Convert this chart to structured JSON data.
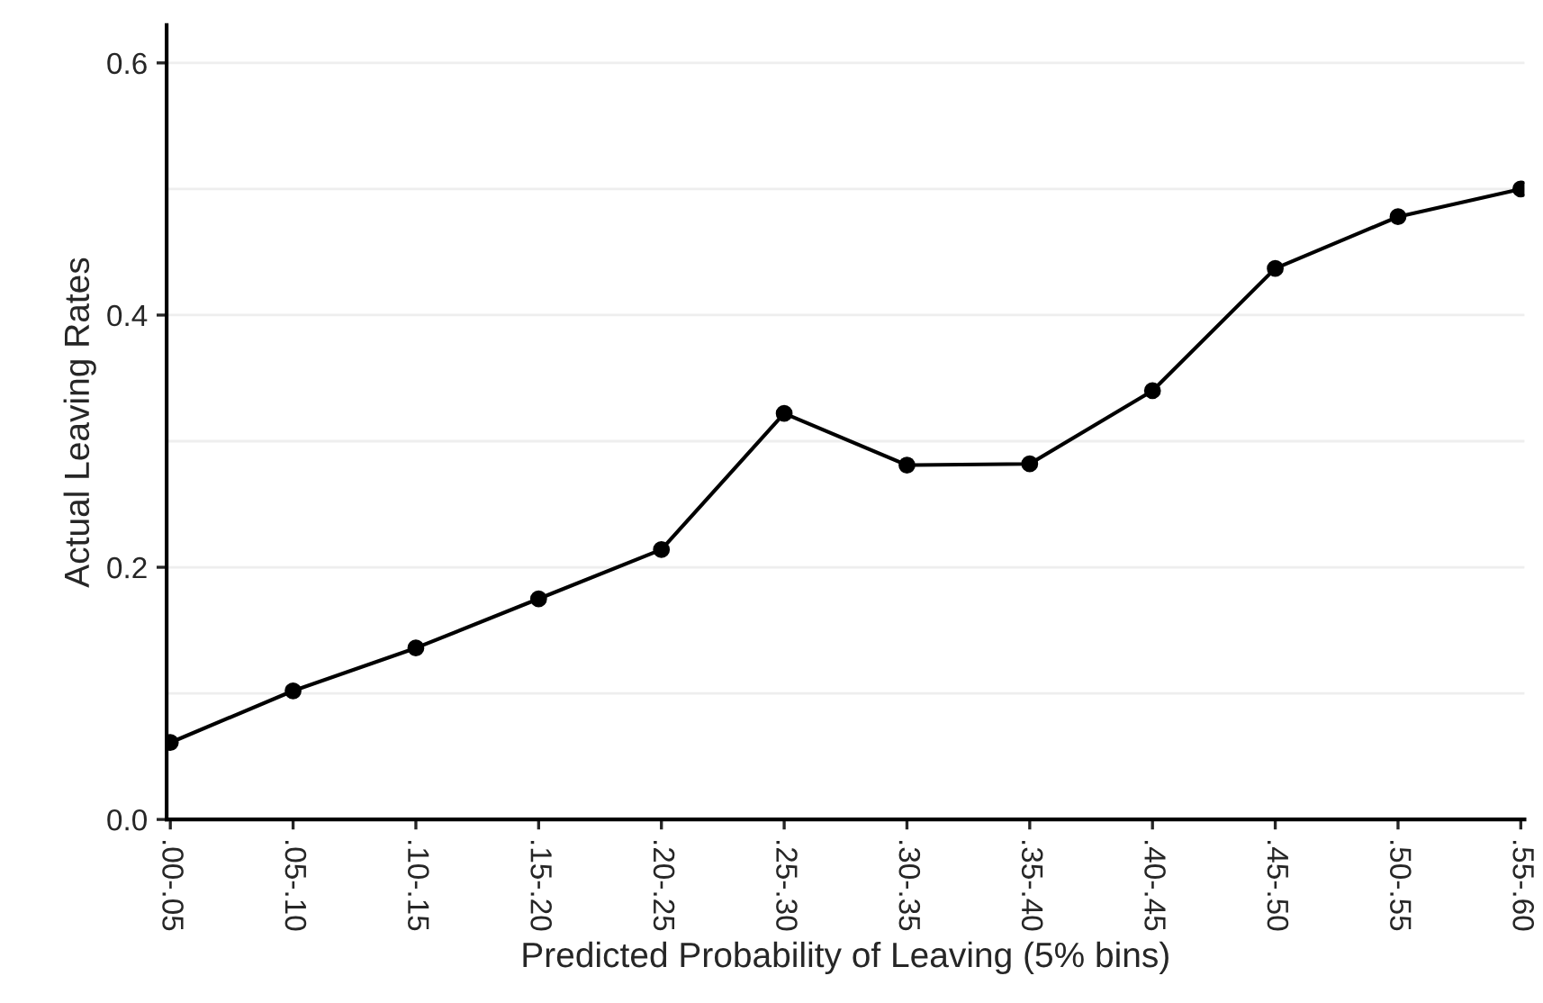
{
  "chart_data": {
    "type": "line",
    "xlabel": "Predicted Probability of Leaving (5% bins)",
    "ylabel": "Actual Leaving Rates",
    "categories": [
      ".00-.05",
      ".05-.10",
      ".10-.15",
      ".15-.20",
      ".20-.25",
      ".25-.30",
      ".30-.35",
      ".35-.40",
      ".40-.45",
      ".45-.50",
      ".50-.55",
      ".55-.60"
    ],
    "series": [
      {
        "color": "#000000",
        "values": [
          0.061,
          0.102,
          0.136,
          0.175,
          0.214,
          0.322,
          0.281,
          0.282,
          0.34,
          0.437,
          0.478,
          0.5
        ]
      }
    ],
    "ylim": [
      0,
      0.63
    ],
    "yticks": [
      {
        "value": 0,
        "label": "0.0"
      },
      {
        "value": 0.1,
        "label": null
      },
      {
        "value": 0.2,
        "label": "0.2"
      },
      {
        "value": 0.3,
        "label": null
      },
      {
        "value": 0.4,
        "label": "0.4"
      },
      {
        "value": 0.5,
        "label": null
      },
      {
        "value": 0.6,
        "label": "0.6"
      }
    ],
    "grid": "y",
    "marker": "circle",
    "line_style": "solid"
  }
}
